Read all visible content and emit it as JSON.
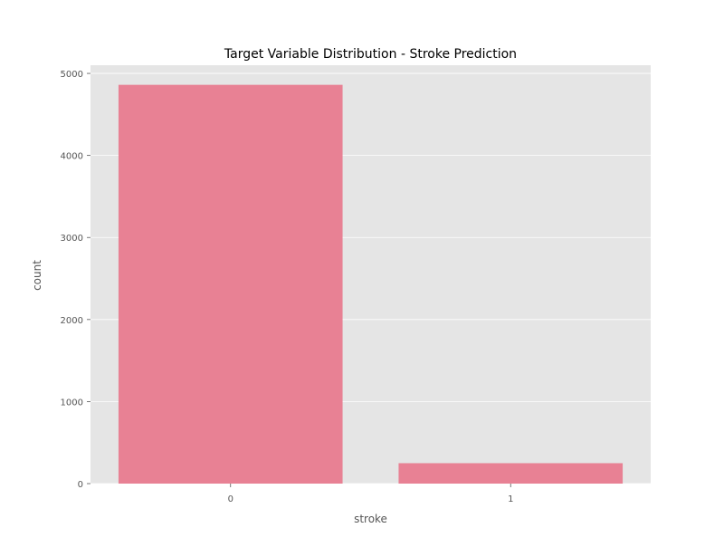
{
  "colors": {
    "background": "#ffffff",
    "plot_background": "#e5e5e5",
    "grid": "#ffffff",
    "bar": "#e88194",
    "text": "#555555",
    "title": "#000000"
  },
  "chart_data": {
    "type": "bar",
    "title": "Target Variable Distribution - Stroke Prediction",
    "xlabel": "stroke",
    "ylabel": "count",
    "categories": [
      "0",
      "1"
    ],
    "values": [
      4861,
      249
    ],
    "ylim": [
      0,
      5100
    ],
    "yticks": [
      0,
      1000,
      2000,
      3000,
      4000,
      5000
    ],
    "grid": true,
    "legend": "none"
  }
}
